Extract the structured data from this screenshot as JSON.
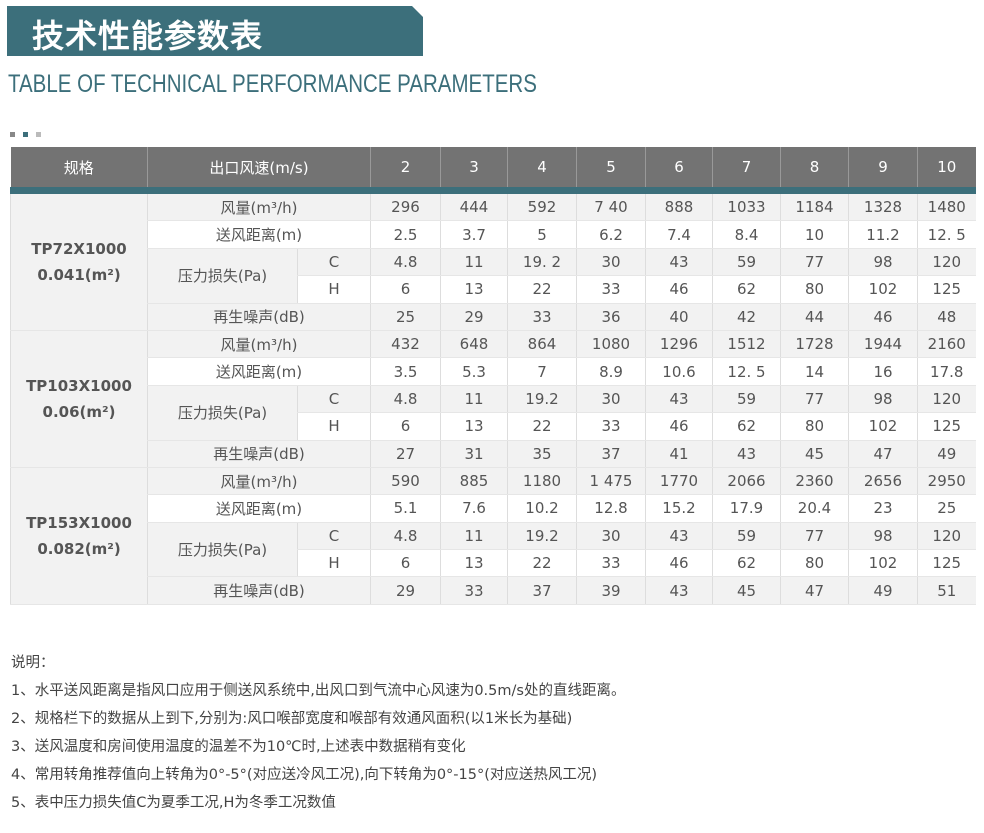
{
  "title": "技术性能参数表",
  "subtitle": "TABLE OF TECHNICAL PERFORMANCE PARAMETERS",
  "colors": {
    "accent": "#3c6f7b",
    "header": "#737373"
  },
  "table": {
    "headers": {
      "spec": "规格",
      "speed": "出口风速(m/s)",
      "speeds": [
        "2",
        "3",
        "4",
        "5",
        "6",
        "7",
        "8",
        "9",
        "10"
      ]
    },
    "labels": {
      "flow": "风量(m³/h)",
      "distance": "送风距离(m)",
      "pressure": "压力损失(Pa)",
      "c": "C",
      "h": "H",
      "noise": "再生噪声(dB)"
    },
    "groups": [
      {
        "model": "TP72X1000",
        "area": "0.041(m²)",
        "flow": [
          "296",
          "444",
          "592",
          "7 40",
          "888",
          "1033",
          "1184",
          "1328",
          "1480"
        ],
        "distance": [
          "2.5",
          "3.7",
          "5",
          "6.2",
          "7.4",
          "8.4",
          "10",
          "11.2",
          "12. 5"
        ],
        "c": [
          "4.8",
          "11",
          "19. 2",
          "30",
          "43",
          "59",
          "77",
          "98",
          "120"
        ],
        "h": [
          "6",
          "13",
          "22",
          "33",
          "46",
          "62",
          "80",
          "102",
          "125"
        ],
        "noise": [
          "25",
          "29",
          "33",
          "36",
          "40",
          "42",
          "44",
          "46",
          "48"
        ]
      },
      {
        "model": "TP103X1000",
        "area": "0.06(m²)",
        "flow": [
          "432",
          "648",
          "864",
          "1080",
          "1296",
          "1512",
          "1728",
          "1944",
          "2160"
        ],
        "distance": [
          "3.5",
          "5.3",
          "7",
          "8.9",
          "10.6",
          "12. 5",
          "14",
          "16",
          "17.8"
        ],
        "c": [
          "4.8",
          "11",
          "19.2",
          "30",
          "43",
          "59",
          "77",
          "98",
          "120"
        ],
        "h": [
          "6",
          "13",
          "22",
          "33",
          "46",
          "62",
          "80",
          "102",
          "125"
        ],
        "noise": [
          "27",
          "31",
          "35",
          "37",
          "41",
          "43",
          "45",
          "47",
          "49"
        ]
      },
      {
        "model": "TP153X1000",
        "area": "0.082(m²)",
        "flow": [
          "590",
          "885",
          "1180",
          "1 475",
          "1770",
          "2066",
          "2360",
          "2656",
          "2950"
        ],
        "distance": [
          "5.1",
          "7.6",
          "10.2",
          "12.8",
          "15.2",
          "17.9",
          "20.4",
          "23",
          "25"
        ],
        "c": [
          "4.8",
          "11",
          "19.2",
          "30",
          "43",
          "59",
          "77",
          "98",
          "120"
        ],
        "h": [
          "6",
          "13",
          "22",
          "33",
          "46",
          "62",
          "80",
          "102",
          "125"
        ],
        "noise": [
          "29",
          "33",
          "37",
          "39",
          "43",
          "45",
          "47",
          "49",
          "51"
        ]
      }
    ]
  },
  "notes": {
    "heading": "说明：",
    "items": [
      "1、水平送风距离是指风口应用于侧送风系统中,出风口到气流中心风速为0.5m/s处的直线距离。",
      "2、规格栏下的数据从上到下,分别为:风口喉部宽度和喉部有效通风面积(以1米长为基础)",
      "3、送风温度和房间使用温度的温差不为10℃时,上述表中数据稍有变化",
      "4、常用转角推荐值向上转角为0°-5°(对应送冷风工况),向下转角为0°-15°(对应送热风工况)",
      "5、表中压力损失值C为夏季工况,H为冬季工况数值"
    ]
  }
}
